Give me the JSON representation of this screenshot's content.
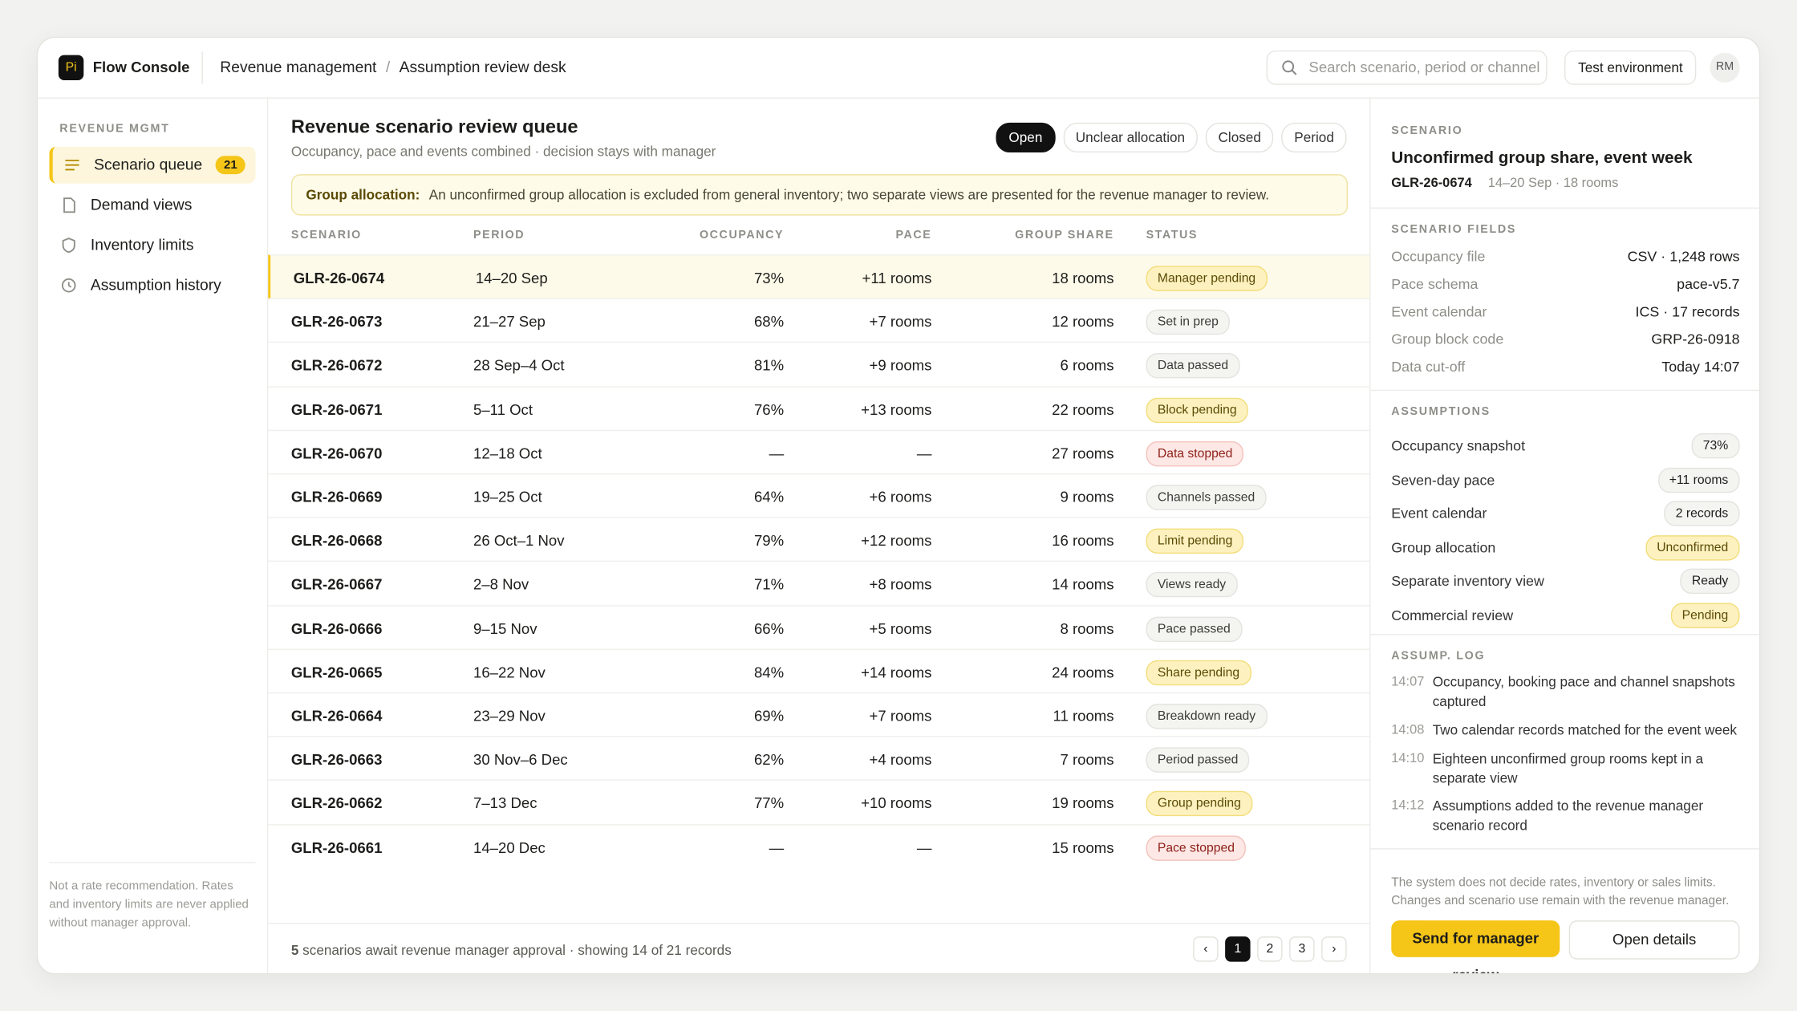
{
  "header": {
    "logo": "Pi",
    "app_name": "Flow Console",
    "breadcrumb": [
      "Revenue management",
      "Assumption review desk"
    ],
    "breadcrumb_separator": "/",
    "search_placeholder": "Search scenario, period or channel",
    "environment": "Test environment",
    "avatar": "RM"
  },
  "sidebar": {
    "section": "REVENUE MGMT",
    "items": [
      {
        "label": "Scenario queue",
        "badge": "21",
        "active": true
      },
      {
        "label": "Demand views"
      },
      {
        "label": "Inventory limits"
      },
      {
        "label": "Assumption history"
      }
    ],
    "footnote": "Not a rate recommendation. Rates and inventory limits are never applied without manager approval."
  },
  "main": {
    "title": "Revenue scenario review queue",
    "subtitle": "Occupancy, pace and events combined · decision stays with manager",
    "filters": [
      "Open",
      "Unclear allocation",
      "Closed",
      "Period"
    ],
    "alert": {
      "label": "Group allocation:",
      "text": "An unconfirmed group allocation is excluded from general inventory; two separate views are presented for the revenue manager to review."
    },
    "table": {
      "columns": [
        "SCENARIO",
        "PERIOD",
        "OCCUPANCY",
        "PACE",
        "GROUP SHARE",
        "STATUS"
      ],
      "rows": [
        {
          "cells": [
            "GLR-26-0674",
            "14–20 Sep",
            "73%",
            "+11 rooms",
            "18 rooms",
            "Manager pending"
          ],
          "tone": "warn",
          "selected": true
        },
        {
          "cells": [
            "GLR-26-0673",
            "21–27 Sep",
            "68%",
            "+7 rooms",
            "12 rooms",
            "Set in prep"
          ],
          "tone": "neutral"
        },
        {
          "cells": [
            "GLR-26-0672",
            "28 Sep–4 Oct",
            "81%",
            "+9 rooms",
            "6 rooms",
            "Data passed"
          ],
          "tone": "neutral"
        },
        {
          "cells": [
            "GLR-26-0671",
            "5–11 Oct",
            "76%",
            "+13 rooms",
            "22 rooms",
            "Block pending"
          ],
          "tone": "warn"
        },
        {
          "cells": [
            "GLR-26-0670",
            "12–18 Oct",
            "—",
            "—",
            "27 rooms",
            "Data stopped"
          ],
          "tone": "stop"
        },
        {
          "cells": [
            "GLR-26-0669",
            "19–25 Oct",
            "64%",
            "+6 rooms",
            "9 rooms",
            "Channels passed"
          ],
          "tone": "neutral"
        },
        {
          "cells": [
            "GLR-26-0668",
            "26 Oct–1 Nov",
            "79%",
            "+12 rooms",
            "16 rooms",
            "Limit pending"
          ],
          "tone": "warn"
        },
        {
          "cells": [
            "GLR-26-0667",
            "2–8 Nov",
            "71%",
            "+8 rooms",
            "14 rooms",
            "Views ready"
          ],
          "tone": "neutral"
        },
        {
          "cells": [
            "GLR-26-0666",
            "9–15 Nov",
            "66%",
            "+5 rooms",
            "8 rooms",
            "Pace passed"
          ],
          "tone": "neutral"
        },
        {
          "cells": [
            "GLR-26-0665",
            "16–22 Nov",
            "84%",
            "+14 rooms",
            "24 rooms",
            "Share pending"
          ],
          "tone": "warn"
        },
        {
          "cells": [
            "GLR-26-0664",
            "23–29 Nov",
            "69%",
            "+7 rooms",
            "11 rooms",
            "Breakdown ready"
          ],
          "tone": "neutral"
        },
        {
          "cells": [
            "GLR-26-0663",
            "30 Nov–6 Dec",
            "62%",
            "+4 rooms",
            "7 rooms",
            "Period passed"
          ],
          "tone": "neutral"
        },
        {
          "cells": [
            "GLR-26-0662",
            "7–13 Dec",
            "77%",
            "+10 rooms",
            "19 rooms",
            "Group pending"
          ],
          "tone": "warn"
        },
        {
          "cells": [
            "GLR-26-0661",
            "14–20 Dec",
            "—",
            "—",
            "15 rooms",
            "Pace stopped"
          ],
          "tone": "stop"
        }
      ]
    },
    "footer": {
      "count": "5",
      "text": "scenarios await revenue manager approval · showing 14 of 21 records"
    },
    "pagination": [
      "‹",
      "1",
      "2",
      "3",
      "›"
    ]
  },
  "detail": {
    "section": "SCENARIO",
    "title": "Unconfirmed group share, event week",
    "id": "GLR-26-0674",
    "meta": "14–20 Sep · 18 rooms",
    "fields_title": "SCENARIO FIELDS",
    "fields": [
      [
        "Occupancy file",
        "CSV · 1,248 rows"
      ],
      [
        "Pace schema",
        "pace-v5.7"
      ],
      [
        "Event calendar",
        "ICS · 17 records"
      ],
      [
        "Group block code",
        "GRP-26-0918"
      ],
      [
        "Data cut-off",
        "Today 14:07"
      ]
    ],
    "assumptions_title": "ASSUMPTIONS",
    "assumptions": [
      {
        "label": "Occupancy snapshot",
        "value": "73%",
        "tone": "neutral"
      },
      {
        "label": "Seven-day pace",
        "value": "+11 rooms",
        "tone": "neutral"
      },
      {
        "label": "Event calendar",
        "value": "2 records",
        "tone": "neutral"
      },
      {
        "label": "Group allocation",
        "value": "Unconfirmed",
        "tone": "warn"
      },
      {
        "label": "Separate inventory view",
        "value": "Ready",
        "tone": "neutral"
      },
      {
        "label": "Commercial review",
        "value": "Pending",
        "tone": "warn"
      }
    ],
    "log_title": "ASSUMP. LOG",
    "log": [
      [
        "14:07",
        "Occupancy, booking pace and channel snapshots captured"
      ],
      [
        "14:08",
        "Two calendar records matched for the event week"
      ],
      [
        "14:10",
        "Eighteen unconfirmed group rooms kept in a separate view"
      ],
      [
        "14:12",
        "Assumptions added to the revenue manager scenario record"
      ]
    ],
    "note": "The system does not decide rates, inventory or sales limits. Changes and scenario use remain with the revenue manager.",
    "primary_button": "Send for manager review",
    "secondary_button": "Open details"
  }
}
